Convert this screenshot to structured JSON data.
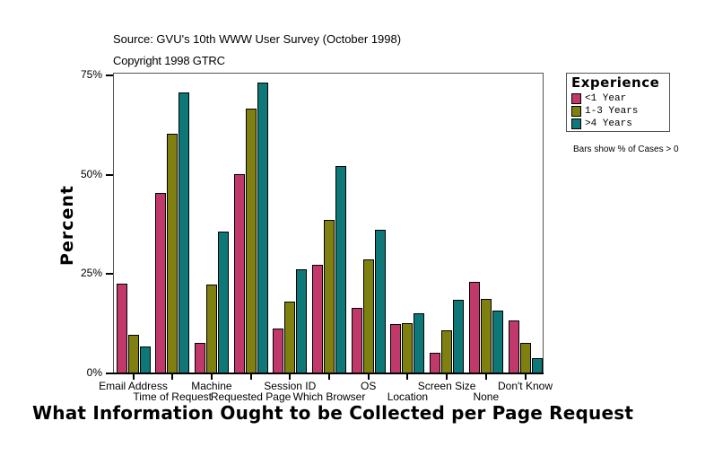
{
  "header": {
    "source": "Source: GVU's 10th WWW User Survey (October 1998)",
    "copyright": "Copyright 1998 GTRC"
  },
  "legend": {
    "title": "Experience",
    "items": [
      {
        "label": "<1 Year",
        "color": "#c0396a"
      },
      {
        "label": "1-3 Years",
        "color": "#808010"
      },
      {
        "label": ">4 Years",
        "color": "#0e7878"
      }
    ],
    "note": "Bars show % of Cases > 0"
  },
  "chart_data": {
    "type": "bar",
    "title": "What Information Ought to be Collected per Page Request",
    "xlabel": "",
    "ylabel": "Percent",
    "ylim": [
      0,
      75
    ],
    "yticks": [
      "0%",
      "25%",
      "50%",
      "75%"
    ],
    "grid": false,
    "legend_position": "right",
    "categories": [
      "Email Address",
      "Time of Request",
      "Machine",
      "Requested Page",
      "Session ID",
      "Which Browser",
      "OS",
      "Location",
      "Screen Size",
      "None",
      "Don't Know"
    ],
    "series": [
      {
        "name": "<1 Year",
        "color": "#c0396a",
        "values": [
          22.7,
          45.4,
          7.7,
          50.2,
          11.3,
          27.4,
          16.5,
          12.4,
          5.2,
          23.1,
          13.3
        ]
      },
      {
        "name": "1-3 Years",
        "color": "#808010",
        "values": [
          9.8,
          60.2,
          22.4,
          66.7,
          18.1,
          38.6,
          28.6,
          12.7,
          10.9,
          18.8,
          7.7
        ]
      },
      {
        "name": ">4 Years",
        "color": "#0e7878",
        "values": [
          6.7,
          70.7,
          35.6,
          73.3,
          26.3,
          52.2,
          36.1,
          15.2,
          18.6,
          15.8,
          3.8
        ]
      }
    ]
  }
}
